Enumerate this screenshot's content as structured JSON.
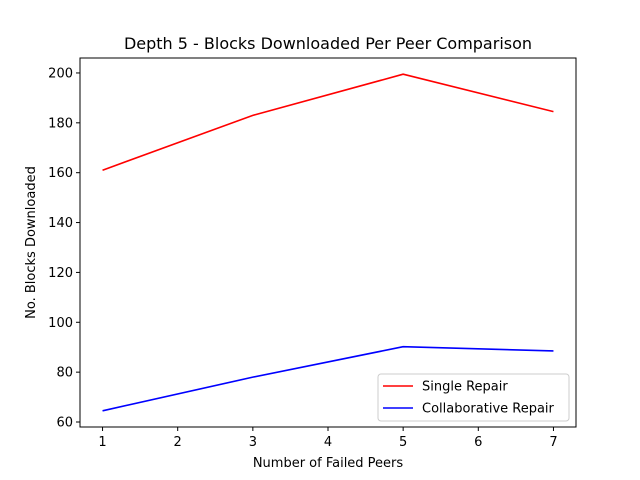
{
  "chart_data": {
    "type": "line",
    "title": "Depth 5 - Blocks Downloaded Per Peer Comparison",
    "xlabel": "Number of Failed Peers",
    "ylabel": "No. Blocks Downloaded",
    "x": [
      1,
      3,
      5,
      7
    ],
    "xlim": [
      0.7,
      7.3
    ],
    "ylim": [
      58,
      206
    ],
    "xticks": [
      1,
      2,
      3,
      4,
      5,
      6,
      7
    ],
    "yticks": [
      60,
      80,
      100,
      120,
      140,
      160,
      180,
      200
    ],
    "grid": false,
    "legend_position": "lower-right",
    "series": [
      {
        "name": "Single Repair",
        "color": "#ff0000",
        "values": [
          161,
          183,
          199.5,
          184.5
        ]
      },
      {
        "name": "Collaborative Repair",
        "color": "#0000ff",
        "values": [
          64.5,
          78,
          90.2,
          88.5
        ]
      }
    ]
  }
}
